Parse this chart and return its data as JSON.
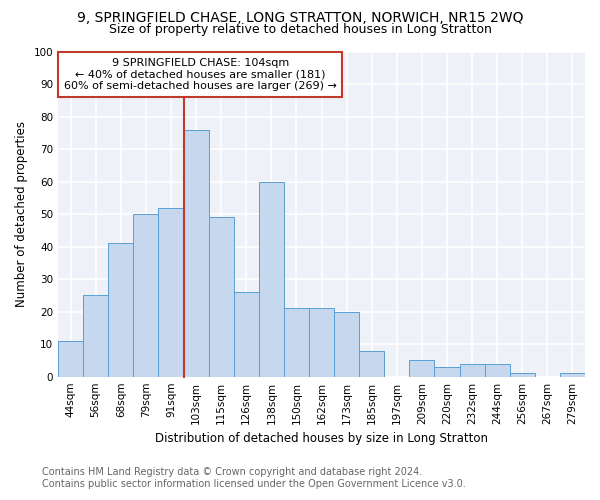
{
  "title1": "9, SPRINGFIELD CHASE, LONG STRATTON, NORWICH, NR15 2WQ",
  "title2": "Size of property relative to detached houses in Long Stratton",
  "xlabel": "Distribution of detached houses by size in Long Stratton",
  "ylabel": "Number of detached properties",
  "footnote1": "Contains HM Land Registry data © Crown copyright and database right 2024.",
  "footnote2": "Contains public sector information licensed under the Open Government Licence v3.0.",
  "bin_labels": [
    "44sqm",
    "56sqm",
    "68sqm",
    "79sqm",
    "91sqm",
    "103sqm",
    "115sqm",
    "126sqm",
    "138sqm",
    "150sqm",
    "162sqm",
    "173sqm",
    "185sqm",
    "197sqm",
    "209sqm",
    "220sqm",
    "232sqm",
    "244sqm",
    "256sqm",
    "267sqm",
    "279sqm"
  ],
  "bar_heights": [
    11,
    25,
    41,
    50,
    52,
    76,
    49,
    26,
    60,
    21,
    21,
    20,
    8,
    0,
    5,
    3,
    4,
    4,
    1,
    0,
    1
  ],
  "bar_color": "#c5d8ed",
  "bar_edge_color": "#5a9fd4",
  "highlight_bar_index": 5,
  "highlight_edge_color": "#c0392b",
  "annotation_text_line1": "9 SPRINGFIELD CHASE: 104sqm",
  "annotation_text_line2": "← 40% of detached houses are smaller (181)",
  "annotation_text_line3": "60% of semi-detached houses are larger (269) →",
  "annotation_box_edge": "#c0392b",
  "ylim": [
    0,
    100
  ],
  "yticks": [
    0,
    10,
    20,
    30,
    40,
    50,
    60,
    70,
    80,
    90,
    100
  ],
  "bg_color": "#eef2f8",
  "grid_color": "white",
  "title1_fontsize": 10,
  "title2_fontsize": 9,
  "axis_label_fontsize": 8.5,
  "tick_fontsize": 7.5,
  "annotation_fontsize": 8,
  "footnote_fontsize": 7
}
